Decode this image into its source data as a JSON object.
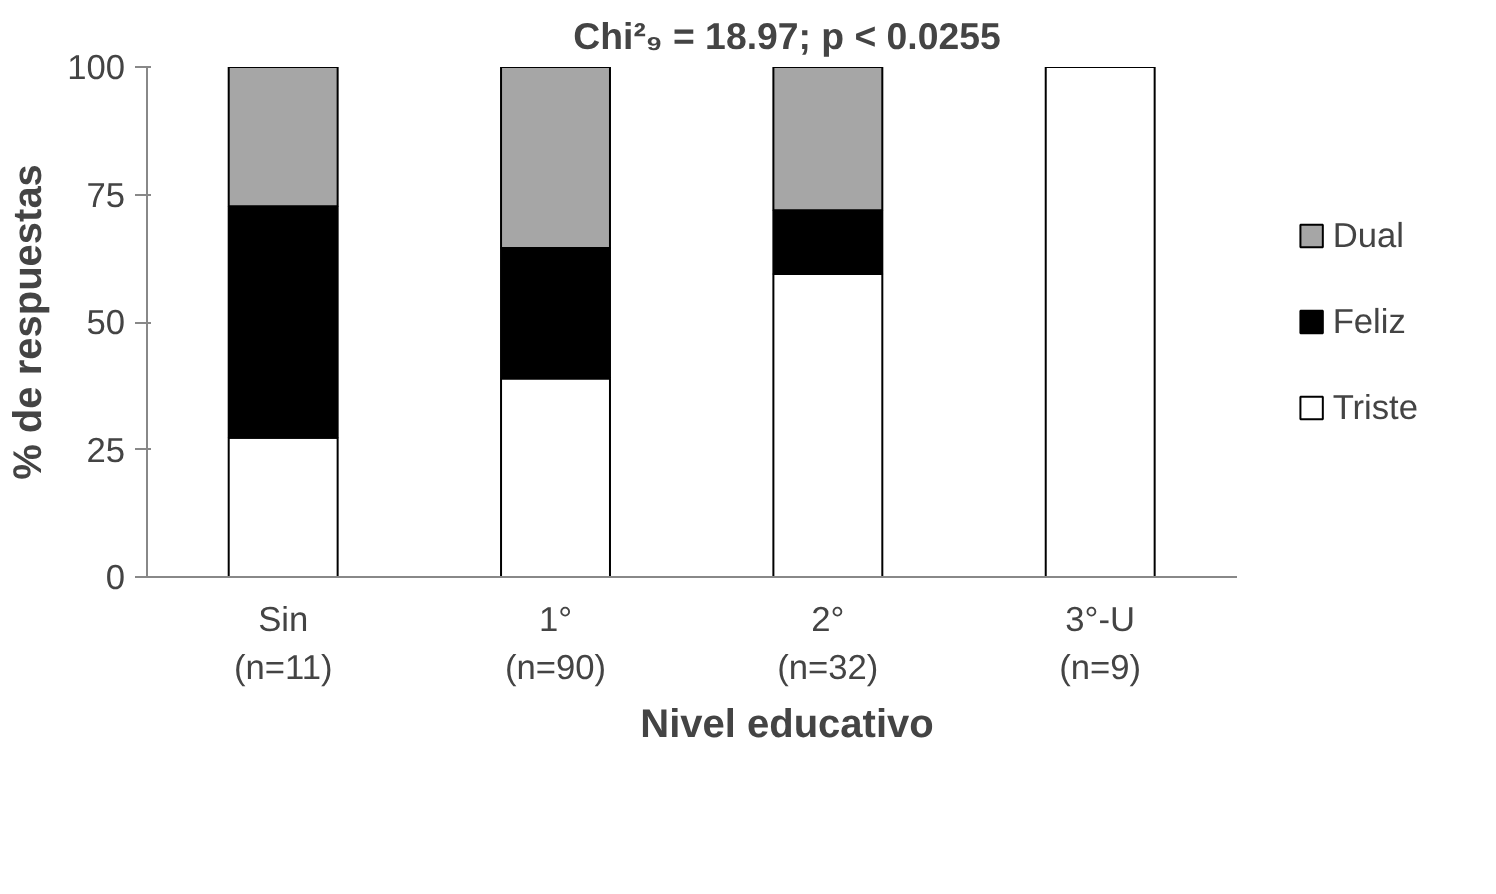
{
  "chart_data": {
    "type": "bar",
    "stacked": true,
    "title": "Chi²₉ = 18.97; p < 0.0255",
    "xlabel": "Nivel educativo",
    "ylabel": "% de respuestas",
    "categories": [
      "Sin\n(n=11)",
      "1°\n(n=90)",
      "2°\n(n=32)",
      "3°-U\n(n=9)"
    ],
    "series": [
      {
        "name": "Triste",
        "color": "#ffffff",
        "values": [
          27.3,
          38.9,
          59.4,
          100
        ]
      },
      {
        "name": "Feliz",
        "color": "#000000",
        "values": [
          45.4,
          25.6,
          12.5,
          0
        ]
      },
      {
        "name": "Dual",
        "color": "#a6a6a6",
        "values": [
          27.3,
          35.5,
          28.1,
          0
        ]
      }
    ],
    "ylim": [
      0,
      100
    ],
    "yticks": [
      0,
      25,
      50,
      75,
      100
    ],
    "grid": false,
    "legend": "right"
  }
}
